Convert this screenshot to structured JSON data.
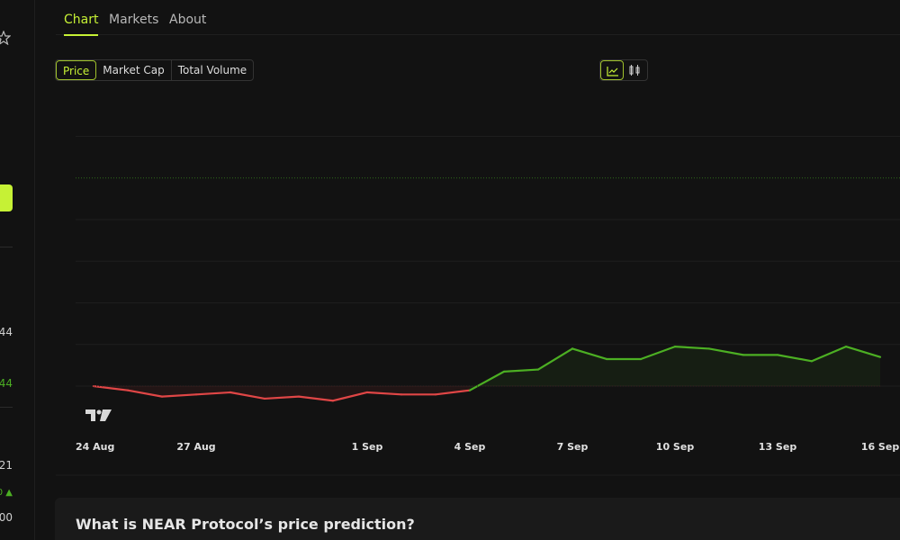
{
  "sidebar": {
    "values": [
      "44",
      "44",
      "21",
      "0 ▲",
      "00"
    ]
  },
  "tabs": [
    "Chart",
    "Markets",
    "About"
  ],
  "metric_buttons": [
    "Price",
    "Market Cap",
    "Total Volume"
  ],
  "chart_data": {
    "type": "line",
    "categories": [
      "24 Aug",
      null,
      null,
      "27 Aug",
      null,
      null,
      null,
      null,
      "1 Sep",
      null,
      null,
      "4 Sep",
      null,
      null,
      "7 Sep",
      null,
      null,
      "10 Sep",
      null,
      null,
      "13 Sep",
      null,
      null,
      "16 Sep"
    ],
    "values": [
      4.4,
      4.38,
      4.35,
      4.36,
      4.37,
      4.34,
      4.35,
      4.33,
      4.37,
      4.36,
      4.36,
      4.38,
      4.47,
      4.48,
      4.58,
      4.53,
      4.53,
      4.59,
      4.58,
      4.55,
      4.55,
      4.52,
      4.59,
      4.54
    ],
    "ylim": [
      4.2,
      5.8
    ],
    "yticks": [
      4.4,
      4.6,
      4.8,
      5.0,
      5.2,
      5.6
    ],
    "baseline": 4.4,
    "marker_line": 5.4,
    "up_color": "#4caf23",
    "down_color": "#e04646",
    "grid": true
  },
  "question": {
    "title": "What is NEAR Protocol’s price prediction?"
  }
}
